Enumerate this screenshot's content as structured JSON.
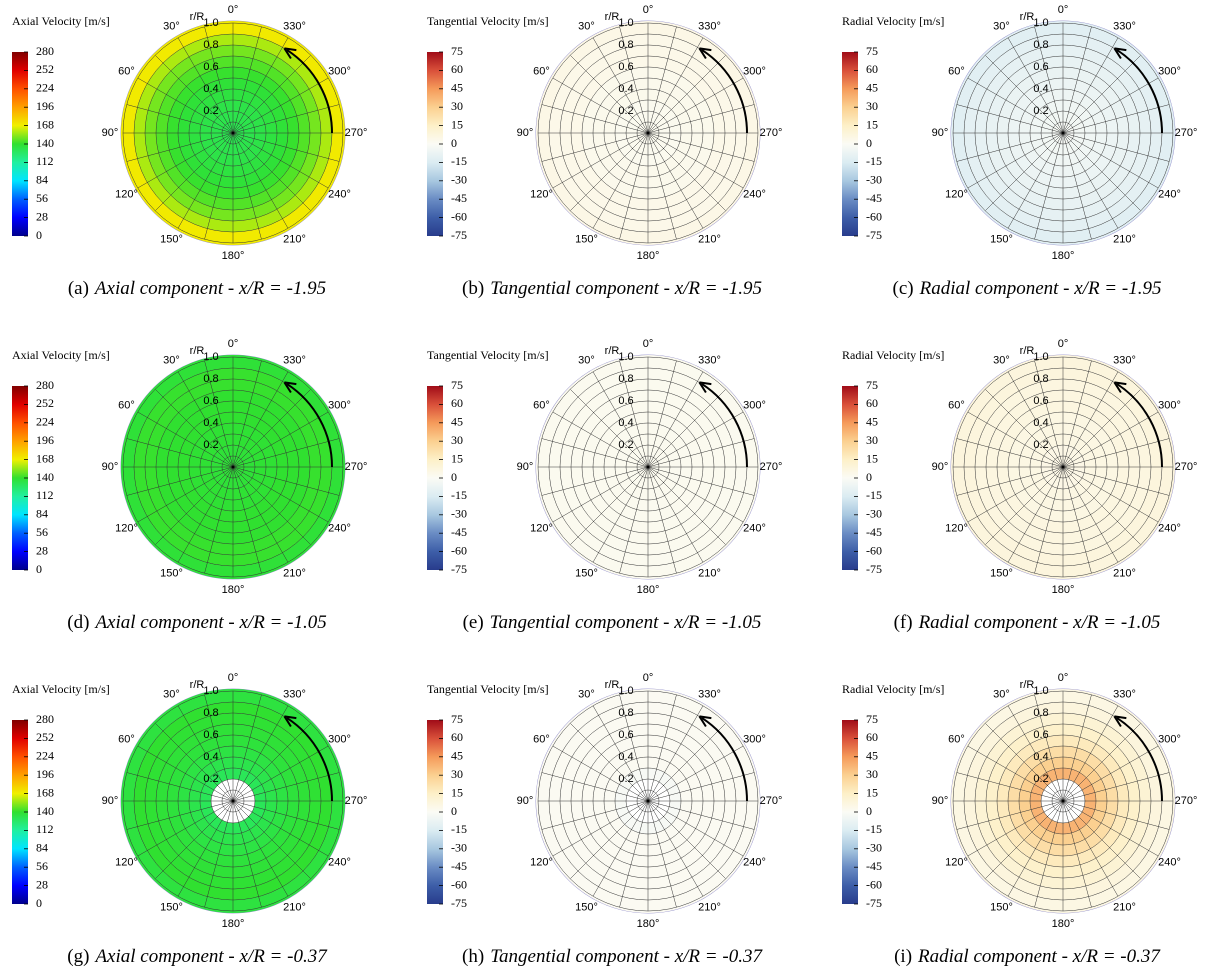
{
  "chart_data": [
    {
      "type": "polar-contour",
      "colorbar_title": "Axial Velocity [m/s]",
      "clim": [
        0,
        280
      ],
      "colorbar_ticks": [
        0,
        28,
        56,
        84,
        112,
        140,
        168,
        196,
        224,
        252,
        280
      ],
      "colorscale": [
        "#00008c",
        "#0000ff",
        "#0060ff",
        "#00e5ff",
        "#20f0a0",
        "#30e030",
        "#f0f000",
        "#ffa000",
        "#ff5000",
        "#e00000",
        "#800000"
      ],
      "r_label": "r/R",
      "rlim": [
        0,
        1
      ],
      "rticks": [
        0.2,
        0.4,
        0.6,
        0.8,
        {
          "value": 1,
          "label": "1.0"
        }
      ],
      "angle_ticks": [
        {
          "value": 0,
          "label": "0°"
        },
        {
          "value": 30,
          "label": "30°"
        },
        {
          "value": 60,
          "label": "60°"
        },
        {
          "value": 90,
          "label": "90°"
        },
        {
          "value": 120,
          "label": "120°"
        },
        {
          "value": 150,
          "label": "150°"
        },
        {
          "value": 180,
          "label": "180°"
        },
        {
          "value": 210,
          "label": "210°"
        },
        {
          "value": 240,
          "label": "240°"
        },
        {
          "value": 270,
          "label": "270°"
        },
        {
          "value": 300,
          "label": "300°"
        },
        {
          "value": 330,
          "label": "330°"
        }
      ],
      "r_edges": [
        0,
        0.1,
        0.2,
        0.3,
        0.4,
        0.5,
        0.6,
        0.7,
        0.8,
        0.9,
        1
      ],
      "values": [
        132,
        133,
        134,
        136,
        138,
        141,
        145,
        150,
        158,
        170
      ],
      "caption_label": "(a)",
      "caption": "Axial component - x/R = -1.95"
    },
    {
      "type": "polar-contour",
      "colorbar_title": "Tangential Velocity [m/s]",
      "clim": [
        -75,
        75
      ],
      "colorbar_ticks": [
        -75,
        -60,
        -45,
        -30,
        -15,
        0,
        15,
        30,
        45,
        60,
        75
      ],
      "colorscale": [
        "#283c8c",
        "#3d5ea8",
        "#6a8cc4",
        "#a8c8e0",
        "#dbecf2",
        "#fbfbf5",
        "#fdf0c8",
        "#fbd090",
        "#f59a5a",
        "#d9503a",
        "#a00c18"
      ],
      "r_label": "r/R",
      "rlim": [
        0,
        1
      ],
      "rticks": [
        0.2,
        0.4,
        0.6,
        0.8,
        {
          "value": 1,
          "label": "1.0"
        }
      ],
      "angle_ticks": [
        {
          "value": 0,
          "label": "0°"
        },
        {
          "value": 30,
          "label": "30°"
        },
        {
          "value": 60,
          "label": "60°"
        },
        {
          "value": 90,
          "label": "90°"
        },
        {
          "value": 120,
          "label": "120°"
        },
        {
          "value": 150,
          "label": "150°"
        },
        {
          "value": 180,
          "label": "180°"
        },
        {
          "value": 210,
          "label": "210°"
        },
        {
          "value": 240,
          "label": "240°"
        },
        {
          "value": 270,
          "label": "270°"
        },
        {
          "value": 300,
          "label": "300°"
        },
        {
          "value": 330,
          "label": "330°"
        }
      ],
      "r_edges": [
        0,
        0.1,
        0.2,
        0.3,
        0.4,
        0.5,
        0.6,
        0.7,
        0.8,
        0.9,
        1
      ],
      "values": [
        2,
        2,
        2,
        3,
        3,
        3,
        4,
        4,
        4,
        5
      ],
      "caption_label": "(b)",
      "caption": "Tangential component - x/R = -1.95"
    },
    {
      "type": "polar-contour",
      "colorbar_title": "Radial Velocity [m/s]",
      "clim": [
        -75,
        75
      ],
      "colorbar_ticks": [
        -75,
        -60,
        -45,
        -30,
        -15,
        0,
        15,
        30,
        45,
        60,
        75
      ],
      "colorscale": [
        "#283c8c",
        "#3d5ea8",
        "#6a8cc4",
        "#a8c8e0",
        "#dbecf2",
        "#fbfbf5",
        "#fdf0c8",
        "#fbd090",
        "#f59a5a",
        "#d9503a",
        "#a00c18"
      ],
      "r_label": "r/R",
      "rlim": [
        0,
        1
      ],
      "rticks": [
        0.2,
        0.4,
        0.6,
        0.8,
        {
          "value": 1,
          "label": "1.0"
        }
      ],
      "angle_ticks": [
        {
          "value": 0,
          "label": "0°"
        },
        {
          "value": 30,
          "label": "30°"
        },
        {
          "value": 60,
          "label": "60°"
        },
        {
          "value": 90,
          "label": "90°"
        },
        {
          "value": 120,
          "label": "120°"
        },
        {
          "value": 150,
          "label": "150°"
        },
        {
          "value": 180,
          "label": "180°"
        },
        {
          "value": 210,
          "label": "210°"
        },
        {
          "value": 240,
          "label": "240°"
        },
        {
          "value": 270,
          "label": "270°"
        },
        {
          "value": 300,
          "label": "300°"
        },
        {
          "value": 330,
          "label": "330°"
        }
      ],
      "r_edges": [
        0,
        0.1,
        0.2,
        0.3,
        0.4,
        0.5,
        0.6,
        0.7,
        0.8,
        0.9,
        1
      ],
      "values": [
        -3,
        -4,
        -5,
        -6,
        -7,
        -8,
        -9,
        -10,
        -11,
        -12
      ],
      "caption_label": "(c)",
      "caption": "Radial component - x/R = -1.95"
    },
    {
      "type": "polar-contour",
      "colorbar_title": "Axial Velocity [m/s]",
      "clim": [
        0,
        280
      ],
      "colorbar_ticks": [
        0,
        28,
        56,
        84,
        112,
        140,
        168,
        196,
        224,
        252,
        280
      ],
      "colorscale": [
        "#00008c",
        "#0000ff",
        "#0060ff",
        "#00e5ff",
        "#20f0a0",
        "#30e030",
        "#f0f000",
        "#ffa000",
        "#ff5000",
        "#e00000",
        "#800000"
      ],
      "r_label": "r/R",
      "rlim": [
        0,
        1
      ],
      "rticks": [
        0.2,
        0.4,
        0.6,
        0.8,
        {
          "value": 1,
          "label": "1.0"
        }
      ],
      "angle_ticks": [
        {
          "value": 0,
          "label": "0°"
        },
        {
          "value": 30,
          "label": "30°"
        },
        {
          "value": 60,
          "label": "60°"
        },
        {
          "value": 90,
          "label": "90°"
        },
        {
          "value": 120,
          "label": "120°"
        },
        {
          "value": 150,
          "label": "150°"
        },
        {
          "value": 180,
          "label": "180°"
        },
        {
          "value": 210,
          "label": "210°"
        },
        {
          "value": 240,
          "label": "240°"
        },
        {
          "value": 270,
          "label": "270°"
        },
        {
          "value": 300,
          "label": "300°"
        },
        {
          "value": 330,
          "label": "330°"
        }
      ],
      "r_edges": [
        0,
        0.1,
        0.2,
        0.3,
        0.4,
        0.5,
        0.6,
        0.7,
        0.8,
        0.9,
        1
      ],
      "values": [
        138,
        138,
        139,
        139,
        140,
        140,
        140,
        141,
        141,
        138
      ],
      "caption_label": "(d)",
      "caption": "Axial component - x/R = -1.05"
    },
    {
      "type": "polar-contour",
      "colorbar_title": "Tangential Velocity [m/s]",
      "clim": [
        -75,
        75
      ],
      "colorbar_ticks": [
        -75,
        -60,
        -45,
        -30,
        -15,
        0,
        15,
        30,
        45,
        60,
        75
      ],
      "colorscale": [
        "#283c8c",
        "#3d5ea8",
        "#6a8cc4",
        "#a8c8e0",
        "#dbecf2",
        "#fbfbf5",
        "#fdf0c8",
        "#fbd090",
        "#f59a5a",
        "#d9503a",
        "#a00c18"
      ],
      "r_label": "r/R",
      "rlim": [
        0,
        1
      ],
      "rticks": [
        0.2,
        0.4,
        0.6,
        0.8,
        {
          "value": 1,
          "label": "1.0"
        }
      ],
      "angle_ticks": [
        {
          "value": 0,
          "label": "0°"
        },
        {
          "value": 30,
          "label": "30°"
        },
        {
          "value": 60,
          "label": "60°"
        },
        {
          "value": 90,
          "label": "90°"
        },
        {
          "value": 120,
          "label": "120°"
        },
        {
          "value": 150,
          "label": "150°"
        },
        {
          "value": 180,
          "label": "180°"
        },
        {
          "value": 210,
          "label": "210°"
        },
        {
          "value": 240,
          "label": "240°"
        },
        {
          "value": 270,
          "label": "270°"
        },
        {
          "value": 300,
          "label": "300°"
        },
        {
          "value": 330,
          "label": "330°"
        }
      ],
      "r_edges": [
        0,
        0.1,
        0.2,
        0.3,
        0.4,
        0.5,
        0.6,
        0.7,
        0.8,
        0.9,
        1
      ],
      "values": [
        2,
        2,
        2,
        2,
        2,
        2,
        2,
        2,
        2,
        2
      ],
      "caption_label": "(e)",
      "caption": "Tangential component - x/R = -1.05"
    },
    {
      "type": "polar-contour",
      "colorbar_title": "Radial Velocity [m/s]",
      "clim": [
        -75,
        75
      ],
      "colorbar_ticks": [
        -75,
        -60,
        -45,
        -30,
        -15,
        0,
        15,
        30,
        45,
        60,
        75
      ],
      "colorscale": [
        "#283c8c",
        "#3d5ea8",
        "#6a8cc4",
        "#a8c8e0",
        "#dbecf2",
        "#fbfbf5",
        "#fdf0c8",
        "#fbd090",
        "#f59a5a",
        "#d9503a",
        "#a00c18"
      ],
      "r_label": "r/R",
      "rlim": [
        0,
        1
      ],
      "rticks": [
        0.2,
        0.4,
        0.6,
        0.8,
        {
          "value": 1,
          "label": "1.0"
        }
      ],
      "angle_ticks": [
        {
          "value": 0,
          "label": "0°"
        },
        {
          "value": 30,
          "label": "30°"
        },
        {
          "value": 60,
          "label": "60°"
        },
        {
          "value": 90,
          "label": "90°"
        },
        {
          "value": 120,
          "label": "120°"
        },
        {
          "value": 150,
          "label": "150°"
        },
        {
          "value": 180,
          "label": "180°"
        },
        {
          "value": 210,
          "label": "210°"
        },
        {
          "value": 240,
          "label": "240°"
        },
        {
          "value": 270,
          "label": "270°"
        },
        {
          "value": 300,
          "label": "300°"
        },
        {
          "value": 330,
          "label": "330°"
        }
      ],
      "r_edges": [
        0,
        0.1,
        0.2,
        0.3,
        0.4,
        0.5,
        0.6,
        0.7,
        0.8,
        0.9,
        1
      ],
      "values": [
        5,
        5,
        6,
        6,
        6,
        7,
        7,
        7,
        8,
        8
      ],
      "caption_label": "(f)",
      "caption": "Radial component - x/R = -1.05"
    },
    {
      "type": "polar-contour",
      "colorbar_title": "Axial Velocity [m/s]",
      "clim": [
        0,
        280
      ],
      "colorbar_ticks": [
        0,
        28,
        56,
        84,
        112,
        140,
        168,
        196,
        224,
        252,
        280
      ],
      "colorscale": [
        "#00008c",
        "#0000ff",
        "#0060ff",
        "#00e5ff",
        "#20f0a0",
        "#30e030",
        "#f0f000",
        "#ffa000",
        "#ff5000",
        "#e00000",
        "#800000"
      ],
      "r_label": "r/R",
      "rlim": [
        0,
        1
      ],
      "rticks": [
        0.2,
        0.4,
        0.6,
        0.8,
        {
          "value": 1,
          "label": "1.0"
        }
      ],
      "angle_ticks": [
        {
          "value": 0,
          "label": "0°"
        },
        {
          "value": 30,
          "label": "30°"
        },
        {
          "value": 60,
          "label": "60°"
        },
        {
          "value": 90,
          "label": "90°"
        },
        {
          "value": 120,
          "label": "120°"
        },
        {
          "value": 150,
          "label": "150°"
        },
        {
          "value": 180,
          "label": "180°"
        },
        {
          "value": 210,
          "label": "210°"
        },
        {
          "value": 240,
          "label": "240°"
        },
        {
          "value": 270,
          "label": "270°"
        },
        {
          "value": 300,
          "label": "300°"
        },
        {
          "value": 330,
          "label": "330°"
        }
      ],
      "r_edges": [
        0,
        0.1,
        0.2,
        0.3,
        0.4,
        0.5,
        0.6,
        0.7,
        0.8,
        0.9,
        1
      ],
      "values": [
        null,
        null,
        130,
        133,
        135,
        137,
        138,
        139,
        140,
        136
      ],
      "caption_label": "(g)",
      "caption": "Axial component - x/R = -0.37"
    },
    {
      "type": "polar-contour",
      "colorbar_title": "Tangential Velocity [m/s]",
      "clim": [
        -75,
        75
      ],
      "colorbar_ticks": [
        -75,
        -60,
        -45,
        -30,
        -15,
        0,
        15,
        30,
        45,
        60,
        75
      ],
      "colorscale": [
        "#283c8c",
        "#3d5ea8",
        "#6a8cc4",
        "#a8c8e0",
        "#dbecf2",
        "#fbfbf5",
        "#fdf0c8",
        "#fbd090",
        "#f59a5a",
        "#d9503a",
        "#a00c18"
      ],
      "r_label": "r/R",
      "rlim": [
        0,
        1
      ],
      "rticks": [
        0.2,
        0.4,
        0.6,
        0.8,
        {
          "value": 1,
          "label": "1.0"
        }
      ],
      "angle_ticks": [
        {
          "value": 0,
          "label": "0°"
        },
        {
          "value": 30,
          "label": "30°"
        },
        {
          "value": 60,
          "label": "60°"
        },
        {
          "value": 90,
          "label": "90°"
        },
        {
          "value": 120,
          "label": "120°"
        },
        {
          "value": 150,
          "label": "150°"
        },
        {
          "value": 180,
          "label": "180°"
        },
        {
          "value": 210,
          "label": "210°"
        },
        {
          "value": 240,
          "label": "240°"
        },
        {
          "value": 270,
          "label": "270°"
        },
        {
          "value": 300,
          "label": "300°"
        },
        {
          "value": 330,
          "label": "330°"
        }
      ],
      "r_edges": [
        0,
        0.1,
        0.2,
        0.3,
        0.4,
        0.5,
        0.6,
        0.7,
        0.8,
        0.9,
        1
      ],
      "values": [
        null,
        null,
        -2,
        1,
        1,
        1,
        1,
        1,
        1,
        1
      ],
      "caption_label": "(h)",
      "caption": "Tangential component - x/R = -0.37"
    },
    {
      "type": "polar-contour",
      "colorbar_title": "Radial Velocity [m/s]",
      "clim": [
        -75,
        75
      ],
      "colorbar_ticks": [
        -75,
        -60,
        -45,
        -30,
        -15,
        0,
        15,
        30,
        45,
        60,
        75
      ],
      "colorscale": [
        "#283c8c",
        "#3d5ea8",
        "#6a8cc4",
        "#a8c8e0",
        "#dbecf2",
        "#fbfbf5",
        "#fdf0c8",
        "#fbd090",
        "#f59a5a",
        "#d9503a",
        "#a00c18"
      ],
      "r_label": "r/R",
      "rlim": [
        0,
        1
      ],
      "rticks": [
        0.2,
        0.4,
        0.6,
        0.8,
        {
          "value": 1,
          "label": "1.0"
        }
      ],
      "angle_ticks": [
        {
          "value": 0,
          "label": "0°"
        },
        {
          "value": 30,
          "label": "30°"
        },
        {
          "value": 60,
          "label": "60°"
        },
        {
          "value": 90,
          "label": "90°"
        },
        {
          "value": 120,
          "label": "120°"
        },
        {
          "value": 150,
          "label": "150°"
        },
        {
          "value": 180,
          "label": "180°"
        },
        {
          "value": 210,
          "label": "210°"
        },
        {
          "value": 240,
          "label": "240°"
        },
        {
          "value": 270,
          "label": "270°"
        },
        {
          "value": 300,
          "label": "300°"
        },
        {
          "value": 330,
          "label": "330°"
        }
      ],
      "r_edges": [
        0,
        0.1,
        0.2,
        0.3,
        0.4,
        0.5,
        0.6,
        0.7,
        0.8,
        0.9,
        1
      ],
      "values": [
        null,
        null,
        38,
        30,
        24,
        18,
        14,
        11,
        8,
        6
      ],
      "caption_label": "(i)",
      "caption": "Radial component - x/R = -0.37"
    }
  ]
}
